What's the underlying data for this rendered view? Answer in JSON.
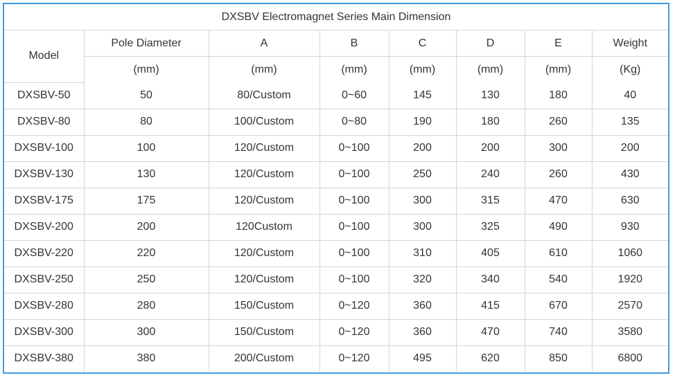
{
  "table": {
    "title": "DXSBV Electromagnet Series Main Dimension",
    "model_header": "Model",
    "headers": [
      "Pole Diameter",
      "A",
      "B",
      "C",
      "D",
      "E",
      "Weight"
    ],
    "units": [
      "(mm)",
      "(mm)",
      "(mm)",
      "(mm)",
      "(mm)",
      "(mm)",
      "(Kg)"
    ],
    "rows": [
      [
        "DXSBV-50",
        "50",
        "80/Custom",
        "0~60",
        "145",
        "130",
        "180",
        "40"
      ],
      [
        "DXSBV-80",
        "80",
        "100/Custom",
        "0~80",
        "190",
        "180",
        "260",
        "135"
      ],
      [
        "DXSBV-100",
        "100",
        "120/Custom",
        "0~100",
        "200",
        "200",
        "300",
        "200"
      ],
      [
        "DXSBV-130",
        "130",
        "120/Custom",
        "0~100",
        "250",
        "240",
        "260",
        "430"
      ],
      [
        "DXSBV-175",
        "175",
        "120/Custom",
        "0~100",
        "300",
        "315",
        "470",
        "630"
      ],
      [
        "DXSBV-200",
        "200",
        "120Custom",
        "0~100",
        "300",
        "325",
        "490",
        "930"
      ],
      [
        "DXSBV-220",
        "220",
        "120/Custom",
        "0~100",
        "310",
        "405",
        "610",
        "1060"
      ],
      [
        "DXSBV-250",
        "250",
        "120/Custom",
        "0~100",
        "320",
        "340",
        "540",
        "1920"
      ],
      [
        "DXSBV-280",
        "280",
        "150/Custom",
        "0~120",
        "360",
        "415",
        "670",
        "2570"
      ],
      [
        "DXSBV-300",
        "300",
        "150/Custom",
        "0~120",
        "360",
        "470",
        "740",
        "3580"
      ],
      [
        "DXSBV-380",
        "380",
        "200/Custom",
        "0~120",
        "495",
        "620",
        "850",
        "6800"
      ]
    ]
  }
}
